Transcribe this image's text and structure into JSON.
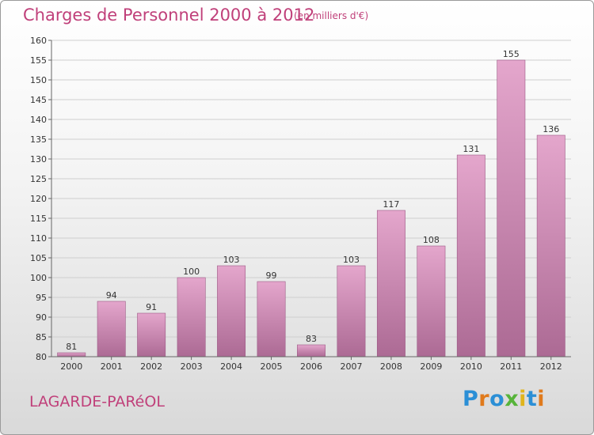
{
  "title": "Charges de Personnel 2000 à 2012",
  "subtitle": "(en milliers d'€)",
  "commune": "LAGARDE-PARéOL",
  "logo": {
    "text": "Proxiti",
    "letters": [
      {
        "ch": "P",
        "color": "#2b8fd6"
      },
      {
        "ch": "r",
        "color": "#e07a1c"
      },
      {
        "ch": "o",
        "color": "#2b8fd6"
      },
      {
        "ch": "x",
        "color": "#57b43a"
      },
      {
        "ch": "i",
        "color": "#e0b41c"
      },
      {
        "ch": "t",
        "color": "#2b8fd6"
      },
      {
        "ch": "i",
        "color": "#e07a1c"
      }
    ]
  },
  "colors": {
    "bar_top": "#e4a6cc",
    "bar_bottom": "#ac6a94",
    "accent": "#c0407a"
  },
  "chart_data": {
    "type": "bar",
    "title": "Charges de Personnel 2000 à 2012",
    "subtitle": "(en milliers d'€)",
    "categories": [
      "2000",
      "2001",
      "2002",
      "2003",
      "2004",
      "2005",
      "2006",
      "2007",
      "2008",
      "2009",
      "2010",
      "2011",
      "2012"
    ],
    "values": [
      81,
      94,
      91,
      100,
      103,
      99,
      83,
      103,
      117,
      108,
      131,
      155,
      136
    ],
    "ylim": [
      80,
      160
    ],
    "yticks": [
      80,
      85,
      90,
      95,
      100,
      105,
      110,
      115,
      120,
      125,
      130,
      135,
      140,
      145,
      150,
      155,
      160
    ],
    "grid": true,
    "data_labels": true
  }
}
